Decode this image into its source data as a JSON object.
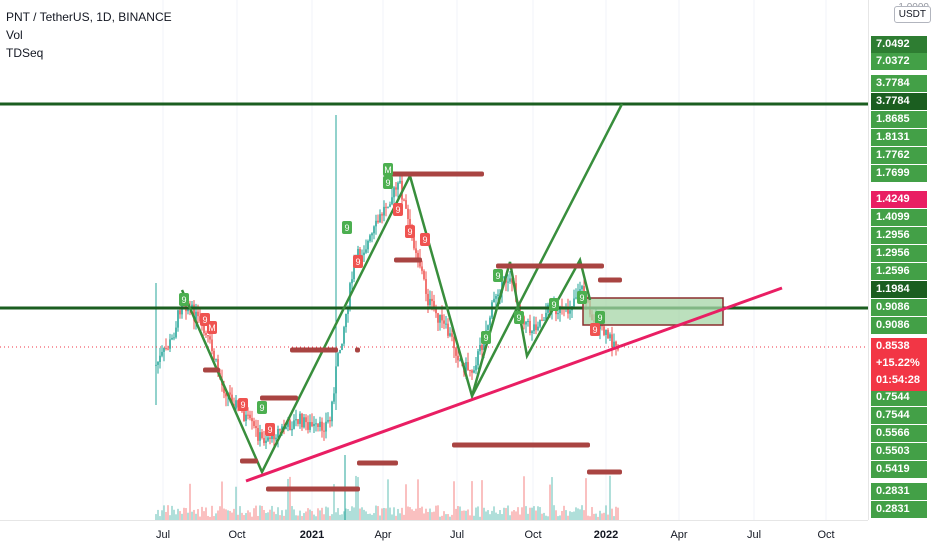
{
  "header": {
    "symbol_line": "PNT / TetherUS, 1D, BINANCE",
    "indicators": [
      "Vol",
      "TDSeq"
    ],
    "currency": "USDT",
    "top_partial_label": "1.0000"
  },
  "price_axis": {
    "labels": [
      {
        "text": "7.0492",
        "color": "#2e7d32"
      },
      {
        "text": "7.0372",
        "color": "#43a047"
      },
      {
        "text": "3.7784",
        "color": "#43a047"
      },
      {
        "text": "3.7784",
        "color": "#1b5e20"
      },
      {
        "text": "1.8685",
        "color": "#43a047"
      },
      {
        "text": "1.8131",
        "color": "#43a047"
      },
      {
        "text": "1.7762",
        "color": "#43a047"
      },
      {
        "text": "1.7699",
        "color": "#43a047"
      },
      {
        "text": "1.4249",
        "color": "#e91e63"
      },
      {
        "text": "1.4099",
        "color": "#43a047"
      },
      {
        "text": "1.2956",
        "color": "#43a047"
      },
      {
        "text": "1.2956",
        "color": "#43a047"
      },
      {
        "text": "1.2596",
        "color": "#43a047"
      },
      {
        "text": "1.1984",
        "color": "#1b5e20"
      },
      {
        "text": "0.9086",
        "color": "#43a047"
      },
      {
        "text": "0.9086",
        "color": "#43a047"
      },
      {
        "text": "0.7544",
        "color": "#43a047"
      },
      {
        "text": "0.7544",
        "color": "#43a047"
      },
      {
        "text": "0.5566",
        "color": "#43a047"
      },
      {
        "text": "0.5503",
        "color": "#43a047"
      },
      {
        "text": "0.5419",
        "color": "#43a047"
      },
      {
        "text": "0.2831",
        "color": "#43a047"
      },
      {
        "text": "0.2831",
        "color": "#43a047"
      }
    ],
    "current": {
      "price": "0.8538",
      "change": "+15.22%",
      "countdown": "01:54:28",
      "color": "#f23645"
    }
  },
  "time_axis": {
    "labels": [
      "Jul",
      "Oct",
      "2021",
      "Apr",
      "Jul",
      "Oct",
      "2022",
      "Apr",
      "Jul",
      "Oct"
    ],
    "bold": [
      "2021",
      "2022"
    ]
  },
  "colors": {
    "up": "#26a69a",
    "down": "#ef5350",
    "trend_green": "#2e7d32",
    "pattern_green": "#388e3c",
    "trend_pink": "#e91e63",
    "bar_marker": "#a94442",
    "box_fill": "#a5d6a7",
    "box_border": "#8b2f2f"
  },
  "chart_data": {
    "type": "candlestick",
    "title": "PNT / TetherUS, 1D, BINANCE",
    "price_scale_labels": [
      "7.0492",
      "7.0372",
      "3.7784",
      "3.7784",
      "1.8685",
      "1.8131",
      "1.7762",
      "1.7699",
      "1.4249",
      "1.4099",
      "1.2956",
      "1.2956",
      "1.2596",
      "1.1984",
      "0.9086",
      "0.9086",
      "0.8538",
      "0.7544",
      "0.7544",
      "0.5566",
      "0.5503",
      "0.5419",
      "0.2831",
      "0.2831"
    ],
    "last_price": 0.8538,
    "change_percent": "+15.22%",
    "horizontal_levels": [
      3.7784,
      1.1984
    ],
    "td_sequential_labels": [
      "9",
      "M"
    ],
    "x_ticks": [
      "Jul",
      "Oct",
      "2021",
      "Apr",
      "Jul",
      "Oct",
      "2022",
      "Apr",
      "Jul",
      "Oct"
    ]
  }
}
